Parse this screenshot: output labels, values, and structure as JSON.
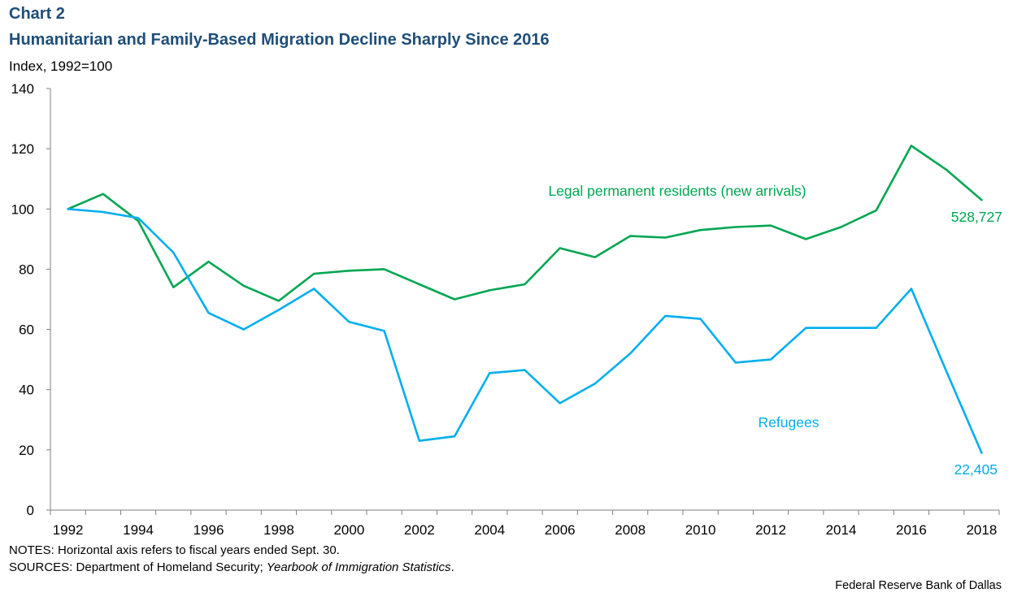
{
  "header": {
    "label": "Chart 2",
    "title": "Humanitarian and Family-Based Migration Decline Sharply Since 2016",
    "y_unit": "Index, 1992=100"
  },
  "footer": {
    "notes": "NOTES: Horizontal axis refers to fiscal years ended Sept. 30.",
    "sources_prefix": "SOURCES: Department of Homeland Security; ",
    "sources_italic": "Yearbook of Immigration Statistics",
    "sources_suffix": ".",
    "credit": "Federal Reserve Bank of Dallas"
  },
  "chart_data": {
    "type": "line",
    "ylabel": "Index, 1992=100",
    "ylim": [
      0,
      140
    ],
    "yticks": [
      0,
      20,
      40,
      60,
      80,
      100,
      120,
      140
    ],
    "x": [
      1992,
      1993,
      1994,
      1995,
      1996,
      1997,
      1998,
      1999,
      2000,
      2001,
      2002,
      2003,
      2004,
      2005,
      2006,
      2007,
      2008,
      2009,
      2010,
      2011,
      2012,
      2013,
      2014,
      2015,
      2016,
      2017,
      2018
    ],
    "xtick_labels": [
      "1992",
      "1994",
      "1996",
      "1998",
      "2000",
      "2002",
      "2004",
      "2006",
      "2008",
      "2010",
      "2012",
      "2014",
      "2016",
      "2018"
    ],
    "series": [
      {
        "name": "Legal permanent residents (new arrivals)",
        "color": "#00a651",
        "end_label": "528,727",
        "values": [
          100,
          105,
          96,
          74,
          82.5,
          74.5,
          69.5,
          78.5,
          79.5,
          80,
          75,
          70,
          73,
          75,
          87,
          84,
          91,
          90.5,
          93,
          94,
          94.5,
          90,
          94,
          99.5,
          121,
          113,
          103
        ]
      },
      {
        "name": "Refugees",
        "color": "#00aeef",
        "end_label": "22,405",
        "values": [
          100,
          99,
          97,
          85.5,
          65.5,
          60,
          66.5,
          73.5,
          62.5,
          59.5,
          23,
          24.5,
          45.5,
          46.5,
          35.5,
          42,
          52,
          64.5,
          63.5,
          49,
          50,
          60.5,
          60.5,
          60.5,
          73.5,
          46,
          19
        ]
      }
    ]
  }
}
